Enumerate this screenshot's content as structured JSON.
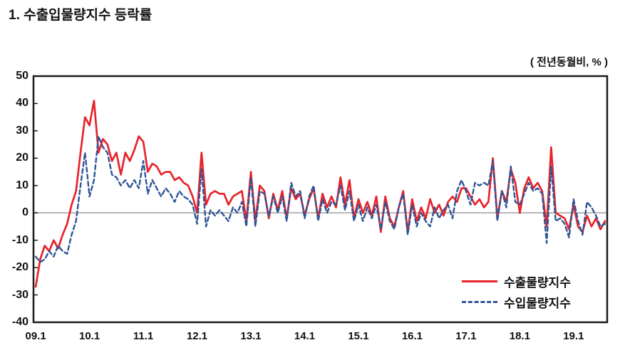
{
  "page": {
    "title": "1. 수출입물량지수 등락률"
  },
  "chart": {
    "unit_label": "( 전년동월비, % )"
  },
  "chart_data": {
    "type": "line",
    "title": "수출입물량지수 등락률",
    "unit": "전년동월비, %",
    "x_frequency": "monthly",
    "x_start": "2009.01",
    "x_end": "2019.08",
    "x_tick_labels": [
      "09.1",
      "10.1",
      "11.1",
      "12.1",
      "13.1",
      "14.1",
      "15.1",
      "16.1",
      "17.1",
      "18.1",
      "19.1"
    ],
    "ylim": [
      -40,
      50
    ],
    "y_ticks": [
      50,
      40,
      30,
      20,
      10,
      0,
      -10,
      -20,
      -30,
      -40
    ],
    "gridlines": "zero-line-only",
    "zero_line_color": "#a8a8a8",
    "axis_color": "#1a1a1a",
    "legend_position": "inside-bottom-right",
    "series": [
      {
        "name": "수출물량지수",
        "color": "#e8232b",
        "line_style": "solid",
        "values": [
          -27,
          -17,
          -12,
          -14,
          -10,
          -13,
          -8,
          -4,
          3,
          8,
          22,
          35,
          32,
          41,
          22,
          27,
          25,
          19,
          22,
          14,
          22,
          19,
          23,
          28,
          26,
          15,
          18,
          17,
          14,
          15,
          15,
          12,
          13,
          11,
          10,
          6,
          0,
          22,
          3,
          7,
          8,
          7,
          7,
          3,
          6,
          7,
          8,
          -3,
          15,
          -3,
          10,
          8,
          -2,
          7,
          1,
          8,
          -2,
          9,
          5,
          7,
          -1,
          5,
          9,
          -2,
          7,
          2,
          6,
          2,
          13,
          3,
          12,
          -2,
          5,
          0,
          4,
          -1,
          6,
          -7,
          6,
          -2,
          -5,
          2,
          8,
          -7,
          5,
          -3,
          2,
          -2,
          5,
          0,
          3,
          -1,
          4,
          6,
          4,
          9,
          9,
          6,
          3,
          5,
          2,
          4,
          20,
          -2,
          8,
          4,
          16,
          11,
          0,
          9,
          13,
          9,
          11,
          8,
          -5,
          24,
          0,
          -1,
          -2,
          -6,
          3,
          -5,
          -7,
          -1,
          -5,
          -2,
          -6,
          -3
        ]
      },
      {
        "name": "수입물량지수",
        "color": "#2f5597",
        "line_style": "dashed",
        "values": [
          -16,
          -18,
          -17,
          -14,
          -16,
          -12,
          -14,
          -15,
          -8,
          -3,
          10,
          22,
          6,
          12,
          28,
          24,
          22,
          14,
          13,
          10,
          12,
          9,
          12,
          9,
          19,
          7,
          12,
          9,
          6,
          9,
          7,
          4,
          8,
          6,
          5,
          3,
          -4,
          16,
          -5,
          1,
          -1,
          1,
          -1,
          -3,
          2,
          0,
          4,
          -5,
          13,
          -5,
          8,
          7,
          -1,
          6,
          0,
          6,
          -3,
          11,
          6,
          8,
          -2,
          6,
          10,
          -3,
          5,
          0,
          4,
          3,
          10,
          1,
          8,
          -3,
          3,
          -3,
          2,
          -2,
          3,
          -6,
          4,
          -3,
          -6,
          2,
          7,
          -8,
          3,
          -5,
          0,
          -3,
          -5,
          2,
          -2,
          1,
          3,
          -2,
          8,
          12,
          8,
          3,
          11,
          10,
          11,
          10,
          19,
          -3,
          8,
          2,
          17,
          4,
          3,
          7,
          11,
          8,
          9,
          7,
          -11,
          17,
          -3,
          -2,
          -4,
          -9,
          5,
          -3,
          -8,
          4,
          2,
          -1,
          -5,
          -4
        ]
      }
    ]
  }
}
